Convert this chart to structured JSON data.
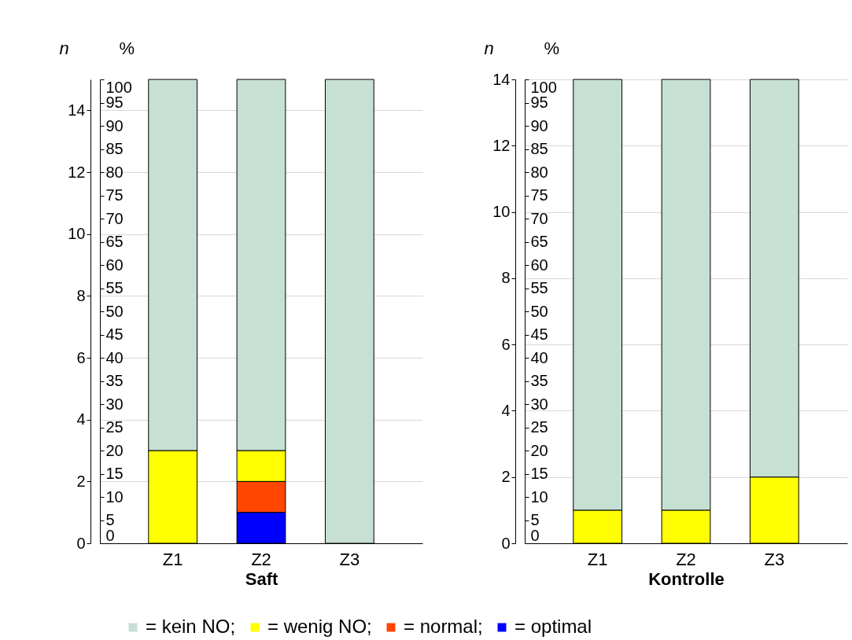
{
  "chart_data": [
    {
      "type": "bar",
      "stacked": true,
      "xlabel": "Saft",
      "ylabel": "n",
      "y2label": "%",
      "categories": [
        "Z1",
        "Z2",
        "Z3"
      ],
      "ylim": [
        0,
        15
      ],
      "yticks": [
        0,
        2,
        4,
        6,
        8,
        10,
        12,
        14
      ],
      "y2lim": [
        0,
        100
      ],
      "y2ticks": [
        0,
        5,
        10,
        15,
        20,
        25,
        30,
        35,
        40,
        45,
        50,
        55,
        60,
        65,
        70,
        75,
        80,
        85,
        90,
        95,
        100
      ],
      "grid": "y",
      "legend": "bottom",
      "series": [
        {
          "name": "= optimal",
          "color": "#0000ff",
          "values": [
            0,
            1,
            0
          ]
        },
        {
          "name": "= normal;",
          "color": "#ff4500",
          "values": [
            0,
            1,
            0
          ]
        },
        {
          "name": "= wenig NO;",
          "color": "#ffff00",
          "values": [
            3,
            1,
            0
          ]
        },
        {
          "name": "= kein NO;",
          "color": "#c6e0d4",
          "values": [
            12,
            12,
            15
          ]
        }
      ]
    },
    {
      "type": "bar",
      "stacked": true,
      "xlabel": "Kontrolle",
      "ylabel": "n",
      "y2label": "%",
      "categories": [
        "Z1",
        "Z2",
        "Z3"
      ],
      "ylim": [
        0,
        14
      ],
      "yticks": [
        0,
        2,
        4,
        6,
        8,
        10,
        12,
        14
      ],
      "y2lim": [
        0,
        100
      ],
      "y2ticks": [
        0,
        5,
        10,
        15,
        20,
        25,
        30,
        35,
        40,
        45,
        50,
        55,
        60,
        65,
        70,
        75,
        80,
        85,
        90,
        95,
        100
      ],
      "grid": "y",
      "series": [
        {
          "color": "#0000ff",
          "values": [
            0,
            0,
            0
          ]
        },
        {
          "color": "#ff4500",
          "values": [
            0,
            0,
            0
          ]
        },
        {
          "color": "#ffff00",
          "values": [
            1,
            1,
            2
          ]
        },
        {
          "color": "#c6e0d4",
          "values": [
            13,
            13,
            12
          ]
        }
      ]
    }
  ]
}
